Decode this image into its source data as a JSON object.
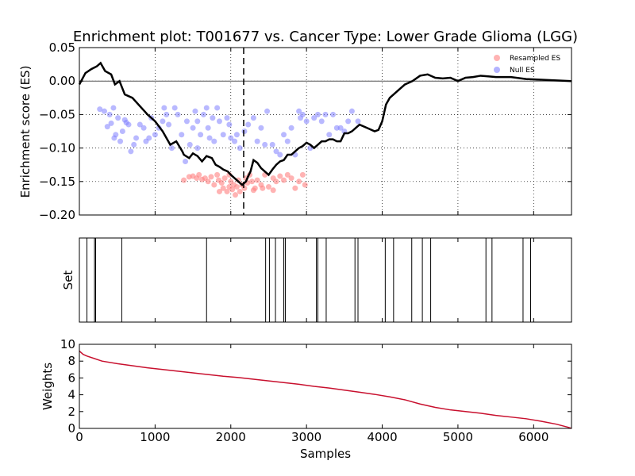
{
  "chart_data": {
    "type": "line",
    "title": "Enrichment plot: T001677 vs. Cancer Type: Lower Grade Glioma (LGG)",
    "xlabel": "Samples",
    "xlim": [
      0,
      6500
    ],
    "x_ticks": [
      0,
      1000,
      2000,
      3000,
      4000,
      5000,
      6000
    ],
    "panels": {
      "es": {
        "ylabel": "Enrichment score (ES)",
        "ylim": [
          -0.2,
          0.05
        ],
        "y_ticks": [
          0.05,
          0.0,
          -0.05,
          -0.1,
          -0.15,
          -0.2
        ],
        "y_tick_labels": [
          "0.05",
          "0.00",
          "−0.05",
          "−0.10",
          "−0.15",
          "−0.20"
        ],
        "grid": true,
        "legend_position": "top-right",
        "vline_x": 2170,
        "legend": [
          {
            "label": "Resampled ES",
            "color": "#ff8080"
          },
          {
            "label": "Null ES",
            "color": "#8080ff"
          }
        ],
        "es_curve": {
          "color": "#000000",
          "x": [
            0,
            80,
            160,
            230,
            280,
            340,
            420,
            470,
            530,
            600,
            700,
            820,
            900,
            1000,
            1100,
            1200,
            1280,
            1360,
            1380,
            1450,
            1500,
            1560,
            1620,
            1680,
            1750,
            1800,
            1850,
            1900,
            1960,
            2000,
            2050,
            2100,
            2150,
            2200,
            2230,
            2260,
            2300,
            2350,
            2400,
            2450,
            2500,
            2550,
            2600,
            2650,
            2700,
            2750,
            2800,
            2850,
            2900,
            2950,
            3000,
            3050,
            3100,
            3150,
            3200,
            3250,
            3300,
            3350,
            3400,
            3450,
            3500,
            3550,
            3600,
            3650,
            3700,
            3800,
            3900,
            3950,
            4000,
            4050,
            4100,
            4200,
            4300,
            4400,
            4500,
            4600,
            4700,
            4800,
            4900,
            5000,
            5100,
            5200,
            5300,
            5400,
            5500,
            5700,
            5900,
            6100,
            6300,
            6500
          ],
          "y": [
            -0.005,
            0.012,
            0.018,
            0.022,
            0.027,
            0.015,
            0.01,
            -0.005,
            0.0,
            -0.02,
            -0.025,
            -0.04,
            -0.05,
            -0.06,
            -0.075,
            -0.095,
            -0.09,
            -0.105,
            -0.11,
            -0.115,
            -0.108,
            -0.112,
            -0.12,
            -0.112,
            -0.115,
            -0.125,
            -0.128,
            -0.132,
            -0.135,
            -0.14,
            -0.145,
            -0.15,
            -0.155,
            -0.15,
            -0.142,
            -0.135,
            -0.118,
            -0.122,
            -0.13,
            -0.135,
            -0.14,
            -0.132,
            -0.125,
            -0.12,
            -0.118,
            -0.11,
            -0.11,
            -0.105,
            -0.1,
            -0.097,
            -0.092,
            -0.095,
            -0.1,
            -0.095,
            -0.09,
            -0.09,
            -0.087,
            -0.087,
            -0.09,
            -0.09,
            -0.078,
            -0.078,
            -0.075,
            -0.07,
            -0.065,
            -0.07,
            -0.075,
            -0.073,
            -0.06,
            -0.035,
            -0.025,
            -0.015,
            -0.005,
            0.0,
            0.008,
            0.01,
            0.005,
            0.004,
            0.005,
            0.0,
            0.005,
            0.006,
            0.008,
            0.007,
            0.006,
            0.006,
            0.003,
            0.002,
            0.001,
            0.0
          ]
        },
        "resampled_es_points": [
          [
            1380,
            -0.148
          ],
          [
            1450,
            -0.143
          ],
          [
            1500,
            -0.142
          ],
          [
            1550,
            -0.145
          ],
          [
            1580,
            -0.14
          ],
          [
            1620,
            -0.147
          ],
          [
            1660,
            -0.145
          ],
          [
            1700,
            -0.15
          ],
          [
            1740,
            -0.143
          ],
          [
            1780,
            -0.155
          ],
          [
            1820,
            -0.14
          ],
          [
            1840,
            -0.148
          ],
          [
            1880,
            -0.152
          ],
          [
            1900,
            -0.16
          ],
          [
            1920,
            -0.145
          ],
          [
            1950,
            -0.165
          ],
          [
            1980,
            -0.158
          ],
          [
            2000,
            -0.15
          ],
          [
            2020,
            -0.162
          ],
          [
            2040,
            -0.155
          ],
          [
            2060,
            -0.17
          ],
          [
            2080,
            -0.158
          ],
          [
            2100,
            -0.148
          ],
          [
            2120,
            -0.165
          ],
          [
            2150,
            -0.155
          ],
          [
            2180,
            -0.16
          ],
          [
            2200,
            -0.145
          ],
          [
            2220,
            -0.152
          ],
          [
            2250,
            -0.14
          ],
          [
            2280,
            -0.15
          ],
          [
            2320,
            -0.16
          ],
          [
            2350,
            -0.148
          ],
          [
            2400,
            -0.155
          ],
          [
            2450,
            -0.14
          ],
          [
            2500,
            -0.158
          ],
          [
            2560,
            -0.145
          ],
          [
            2600,
            -0.15
          ],
          [
            2650,
            -0.142
          ],
          [
            2700,
            -0.148
          ],
          [
            2750,
            -0.14
          ],
          [
            2800,
            -0.145
          ],
          [
            2850,
            -0.16
          ],
          [
            2900,
            -0.15
          ],
          [
            2950,
            -0.14
          ],
          [
            2980,
            -0.155
          ],
          [
            2300,
            -0.163
          ],
          [
            1980,
            -0.14
          ],
          [
            2420,
            -0.16
          ],
          [
            2560,
            -0.163
          ],
          [
            1850,
            -0.165
          ]
        ],
        "null_es_points": [
          [
            270,
            -0.042
          ],
          [
            330,
            -0.045
          ],
          [
            370,
            -0.068
          ],
          [
            400,
            -0.05
          ],
          [
            420,
            -0.063
          ],
          [
            450,
            -0.04
          ],
          [
            460,
            -0.085
          ],
          [
            480,
            -0.08
          ],
          [
            510,
            -0.055
          ],
          [
            540,
            -0.09
          ],
          [
            570,
            -0.075
          ],
          [
            600,
            -0.058
          ],
          [
            620,
            -0.062
          ],
          [
            650,
            -0.065
          ],
          [
            680,
            -0.105
          ],
          [
            720,
            -0.095
          ],
          [
            750,
            -0.085
          ],
          [
            800,
            -0.065
          ],
          [
            850,
            -0.07
          ],
          [
            880,
            -0.09
          ],
          [
            920,
            -0.085
          ],
          [
            950,
            -0.055
          ],
          [
            1000,
            -0.08
          ],
          [
            1050,
            -0.07
          ],
          [
            1100,
            -0.06
          ],
          [
            1120,
            -0.04
          ],
          [
            1150,
            -0.05
          ],
          [
            1180,
            -0.065
          ],
          [
            1220,
            -0.1
          ],
          [
            1260,
            -0.04
          ],
          [
            1300,
            -0.05
          ],
          [
            1350,
            -0.08
          ],
          [
            1400,
            -0.12
          ],
          [
            1420,
            -0.06
          ],
          [
            1460,
            -0.095
          ],
          [
            1500,
            -0.07
          ],
          [
            1530,
            -0.045
          ],
          [
            1560,
            -0.06
          ],
          [
            1600,
            -0.08
          ],
          [
            1640,
            -0.05
          ],
          [
            1680,
            -0.04
          ],
          [
            1700,
            -0.07
          ],
          [
            1720,
            -0.085
          ],
          [
            1760,
            -0.055
          ],
          [
            1780,
            -0.09
          ],
          [
            1820,
            -0.04
          ],
          [
            1850,
            -0.06
          ],
          [
            1900,
            -0.08
          ],
          [
            1950,
            -0.055
          ],
          [
            1980,
            -0.065
          ],
          [
            2000,
            -0.085
          ],
          [
            2050,
            -0.09
          ],
          [
            2080,
            -0.08
          ],
          [
            2120,
            -0.1
          ],
          [
            2180,
            -0.075
          ],
          [
            2230,
            -0.065
          ],
          [
            2300,
            -0.055
          ],
          [
            2350,
            -0.09
          ],
          [
            2400,
            -0.07
          ],
          [
            2450,
            -0.095
          ],
          [
            2480,
            -0.045
          ],
          [
            2550,
            -0.095
          ],
          [
            2600,
            -0.105
          ],
          [
            2650,
            -0.11
          ],
          [
            2700,
            -0.08
          ],
          [
            2750,
            -0.09
          ],
          [
            2800,
            -0.07
          ],
          [
            2850,
            -0.11
          ],
          [
            2900,
            -0.045
          ],
          [
            2950,
            -0.05
          ],
          [
            3000,
            -0.06
          ],
          [
            3050,
            -0.1
          ],
          [
            3100,
            -0.055
          ],
          [
            3150,
            -0.05
          ],
          [
            3200,
            -0.06
          ],
          [
            3250,
            -0.05
          ],
          [
            3300,
            -0.08
          ],
          [
            3350,
            -0.05
          ],
          [
            3400,
            -0.07
          ],
          [
            3450,
            -0.07
          ],
          [
            3500,
            -0.075
          ],
          [
            3550,
            -0.06
          ],
          [
            3600,
            -0.045
          ],
          [
            3680,
            -0.06
          ],
          [
            2920,
            -0.055
          ],
          [
            1560,
            -0.1
          ]
        ]
      },
      "set": {
        "ylabel": "Set",
        "hit_positions": [
          100,
          200,
          215,
          560,
          1680,
          2460,
          2510,
          2590,
          2700,
          2720,
          3130,
          3150,
          3260,
          3640,
          3680,
          4040,
          4150,
          4390,
          4530,
          4640,
          5370,
          5450,
          5860,
          5960
        ]
      },
      "weights": {
        "ylabel": "Weights",
        "ylim": [
          0,
          10
        ],
        "y_ticks": [
          0,
          2,
          4,
          6,
          8,
          10
        ],
        "color": "#c8102e",
        "x": [
          0,
          50,
          100,
          200,
          300,
          500,
          700,
          900,
          1100,
          1300,
          1500,
          1700,
          1900,
          2100,
          2300,
          2500,
          2700,
          2900,
          3100,
          3300,
          3500,
          3700,
          3900,
          4100,
          4300,
          4500,
          4700,
          4900,
          5100,
          5300,
          5500,
          5700,
          5900,
          6100,
          6300,
          6450,
          6500
        ],
        "y": [
          9.2,
          8.8,
          8.6,
          8.3,
          8.0,
          7.7,
          7.45,
          7.2,
          7.0,
          6.8,
          6.6,
          6.4,
          6.2,
          6.05,
          5.85,
          5.65,
          5.45,
          5.25,
          5.0,
          4.8,
          4.55,
          4.3,
          4.05,
          3.75,
          3.4,
          2.9,
          2.5,
          2.2,
          2.0,
          1.8,
          1.55,
          1.35,
          1.15,
          0.85,
          0.5,
          0.15,
          0.0
        ]
      }
    }
  }
}
